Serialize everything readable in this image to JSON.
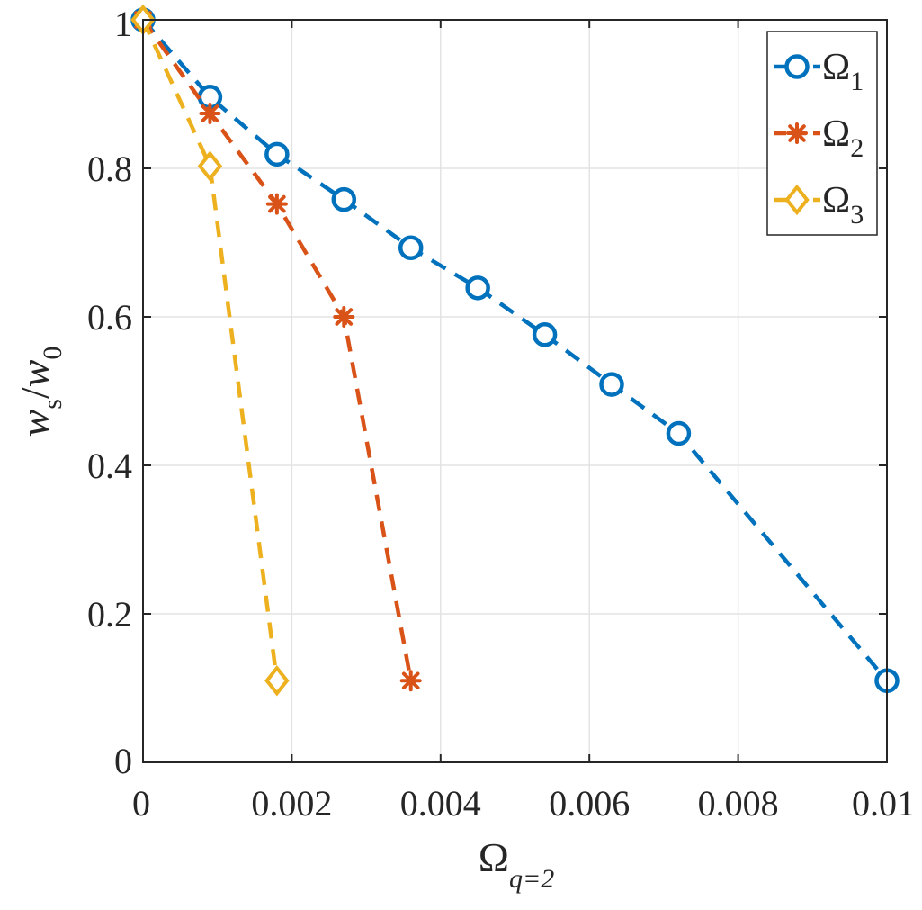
{
  "chart_data": {
    "type": "line",
    "xlabel": {
      "main": "Ω",
      "sub": "q=2"
    },
    "ylabel": {
      "w1": "w",
      "w1_sub": "s",
      "slash": "/",
      "w2": "w",
      "w2_sub": "0"
    },
    "xlim": [
      0,
      0.01
    ],
    "ylim": [
      0,
      1
    ],
    "xticks": [
      0,
      0.002,
      0.004,
      0.006,
      0.008,
      0.01
    ],
    "xtick_labels": [
      "0",
      "0.002",
      "0.004",
      "0.006",
      "0.008",
      "0.01"
    ],
    "yticks": [
      0,
      0.2,
      0.4,
      0.6,
      0.8,
      1
    ],
    "ytick_labels": [
      "0",
      "0.2",
      "0.4",
      "0.6",
      "0.8",
      "1"
    ],
    "grid": true,
    "legend_position": "top-right",
    "series": [
      {
        "name": "Ω",
        "name_sub": "1",
        "color": "#0072BD",
        "marker": "circle",
        "line_style": "dashed",
        "x": [
          0,
          0.0009,
          0.0018,
          0.0027,
          0.0036,
          0.0045,
          0.0054,
          0.0063,
          0.0072,
          0.01
        ],
        "y": [
          1.0,
          0.896,
          0.819,
          0.758,
          0.693,
          0.639,
          0.576,
          0.509,
          0.443,
          0.11
        ]
      },
      {
        "name": "Ω",
        "name_sub": "2",
        "color": "#D95319",
        "marker": "asterisk",
        "line_style": "dashed",
        "x": [
          0,
          0.0009,
          0.0018,
          0.0027,
          0.0036
        ],
        "y": [
          1.0,
          0.874,
          0.752,
          0.6,
          0.11
        ]
      },
      {
        "name": "Ω",
        "name_sub": "3",
        "color": "#EDB120",
        "marker": "diamond",
        "line_style": "dashed",
        "x": [
          0,
          0.0009,
          0.0018
        ],
        "y": [
          1.0,
          0.803,
          0.11
        ]
      }
    ]
  }
}
